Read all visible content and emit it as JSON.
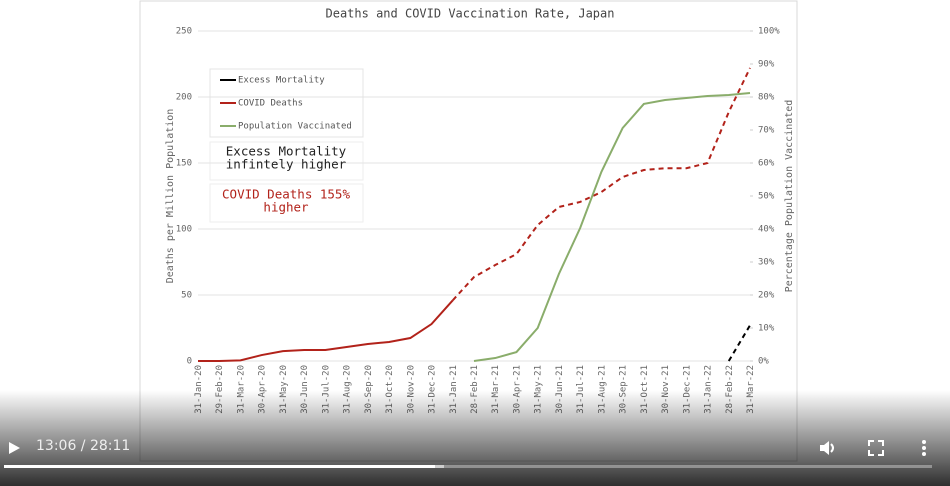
{
  "chart_data": {
    "type": "line",
    "title": "Deaths and COVID Vaccination Rate, Japan",
    "ylabel": "Deaths per Million Population",
    "y2label": "Percentage Population Vaccinated",
    "categories": [
      "31-Jan-20",
      "29-Feb-20",
      "31-Mar-20",
      "30-Apr-20",
      "31-May-20",
      "30-Jun-20",
      "31-Jul-20",
      "31-Aug-20",
      "30-Sep-20",
      "31-Oct-20",
      "30-Nov-20",
      "31-Dec-20",
      "31-Jan-21",
      "28-Feb-21",
      "31-Mar-21",
      "30-Apr-21",
      "31-May-21",
      "30-Jun-21",
      "31-Jul-21",
      "31-Aug-21",
      "30-Sep-21",
      "31-Oct-21",
      "30-Nov-21",
      "31-Dec-21",
      "31-Jan-22",
      "28-Feb-22",
      "31-Mar-22"
    ],
    "series": [
      {
        "name": "Excess Mortality",
        "color": "#000000",
        "dash_start": 0,
        "values": [
          null,
          null,
          null,
          null,
          null,
          null,
          null,
          null,
          null,
          null,
          null,
          null,
          null,
          null,
          null,
          null,
          null,
          null,
          null,
          null,
          null,
          null,
          null,
          null,
          null,
          0,
          27
        ]
      },
      {
        "name": "COVID Deaths",
        "color": "#b2221a",
        "dash_start": 12,
        "values": [
          0,
          0,
          0.5,
          4.5,
          7.5,
          8.3,
          8.3,
          10.6,
          12.9,
          14.4,
          17.4,
          28,
          46,
          63.6,
          72.7,
          81,
          103,
          116.7,
          120.5,
          128,
          139.4,
          144.7,
          146,
          146,
          150,
          188.6,
          222
        ]
      },
      {
        "name": "Population Vaccinated",
        "color": "#8aad6b",
        "axis": "y2",
        "values": [
          null,
          null,
          null,
          null,
          null,
          null,
          null,
          null,
          null,
          null,
          null,
          null,
          null,
          0,
          0.9,
          2.7,
          10,
          26.4,
          40.3,
          57.3,
          70.6,
          77.9,
          79.1,
          79.7,
          80.3,
          80.6,
          81.2
        ]
      }
    ],
    "ylim": [
      0,
      250
    ],
    "yticks": [
      0,
      50,
      100,
      150,
      200,
      250
    ],
    "y2lim": [
      0,
      100
    ],
    "y2ticks": [
      {
        "value": 0,
        "label": "0%"
      },
      {
        "value": 10,
        "label": "10%"
      },
      {
        "value": 20,
        "label": "20%"
      },
      {
        "value": 30,
        "label": "30%"
      },
      {
        "value": 40,
        "label": "40%"
      },
      {
        "value": 50,
        "label": "50%"
      },
      {
        "value": 60,
        "label": "60%"
      },
      {
        "value": 70,
        "label": "70%"
      },
      {
        "value": 80,
        "label": "80%"
      },
      {
        "value": 90,
        "label": "90%"
      },
      {
        "value": 100,
        "label": "100%"
      }
    ],
    "grid": true,
    "annotations": [
      {
        "lines": [
          "Excess Mortality",
          "infintely higher"
        ],
        "color": "#222222"
      },
      {
        "lines": [
          "COVID Deaths 155%",
          "higher"
        ],
        "color": "#b2221a"
      }
    ]
  },
  "player": {
    "time": "13:06 / 28:11"
  }
}
